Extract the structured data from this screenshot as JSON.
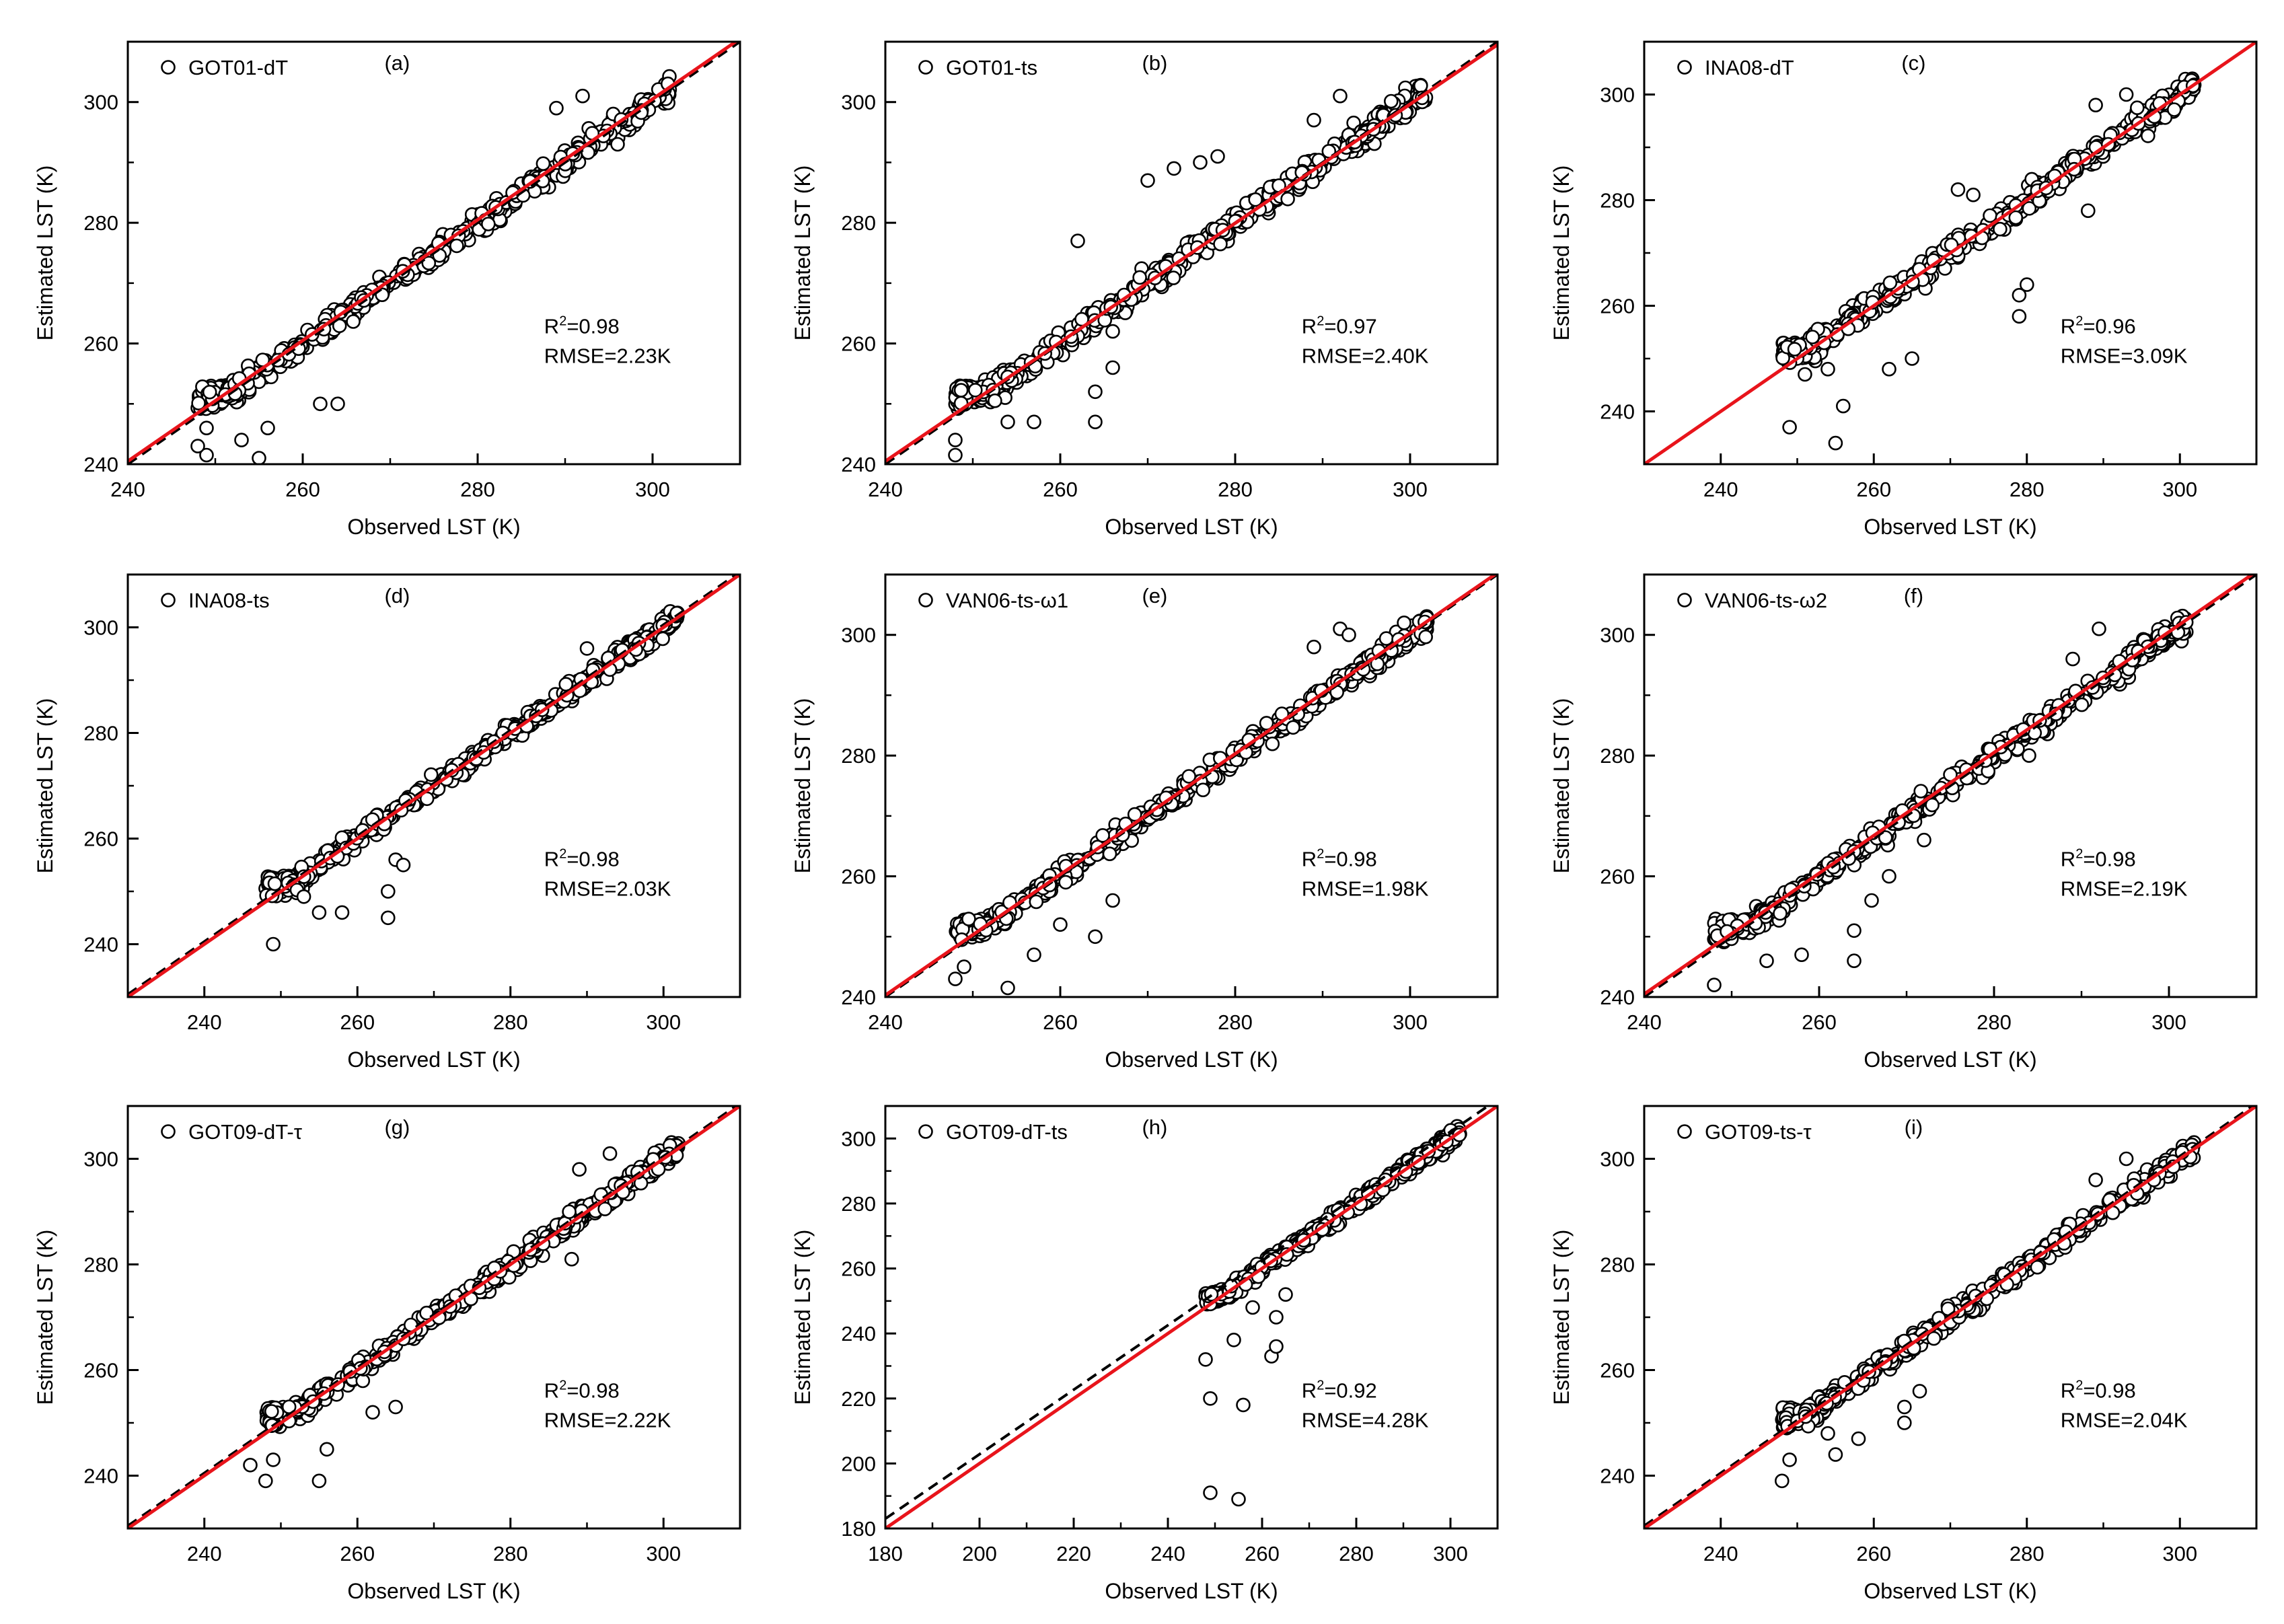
{
  "colors": {
    "fit_line": "#e8141b",
    "one_to_one": "#000000",
    "marker_edge": "#000000",
    "marker_fill": "#ffffff"
  },
  "common": {
    "xlabel": "Observed LST (K)",
    "ylabel": "Estimated LST (K)"
  },
  "chart_data": [
    {
      "type": "scatter",
      "panel": "(a)",
      "legend": "GOT01-dT",
      "r2_label": "R",
      "r2_value": "=0.98",
      "rmse": "RMSE=2.23K",
      "xlim": [
        240,
        310
      ],
      "ylim": [
        240,
        310
      ],
      "xticks": [
        240,
        260,
        280,
        300
      ],
      "yticks": [
        240,
        260,
        280,
        300
      ],
      "fit": [
        [
          240,
          240.5
        ],
        [
          310,
          310.5
        ]
      ],
      "one_to_one": [
        [
          240,
          240
        ],
        [
          310,
          310
        ]
      ],
      "outliers": [
        [
          249,
          241.5
        ],
        [
          255,
          241
        ],
        [
          256,
          246
        ],
        [
          249,
          246
        ],
        [
          262,
          250
        ],
        [
          264,
          250
        ],
        [
          253,
          244
        ],
        [
          248,
          243
        ],
        [
          289,
          299
        ],
        [
          292,
          301
        ],
        [
          296,
          293
        ],
        [
          284,
          285
        ]
      ]
    },
    {
      "type": "scatter",
      "panel": "(b)",
      "legend": "GOT01-ts",
      "r2_label": "R",
      "r2_value": "=0.97",
      "rmse": "RMSE=2.40K",
      "xlim": [
        240,
        310
      ],
      "ylim": [
        240,
        310
      ],
      "xticks": [
        240,
        260,
        280,
        300
      ],
      "yticks": [
        240,
        260,
        280,
        300
      ],
      "fit": [
        [
          240,
          240.5
        ],
        [
          310,
          309.5
        ]
      ],
      "one_to_one": [
        [
          240,
          240
        ],
        [
          310,
          310
        ]
      ],
      "outliers": [
        [
          248,
          241.5
        ],
        [
          254,
          247
        ],
        [
          257,
          247
        ],
        [
          264,
          247
        ],
        [
          264,
          252
        ],
        [
          266,
          256
        ],
        [
          266,
          262
        ],
        [
          270,
          287
        ],
        [
          273,
          289
        ],
        [
          276,
          290
        ],
        [
          278,
          291
        ],
        [
          262,
          277
        ],
        [
          289,
          297
        ],
        [
          292,
          301
        ],
        [
          248,
          244
        ]
      ]
    },
    {
      "type": "scatter",
      "panel": "(c)",
      "legend": "INA08-dT",
      "r2_label": "R",
      "r2_value": "=0.96",
      "rmse": "RMSE=3.09K",
      "xlim": [
        230,
        310
      ],
      "ylim": [
        230,
        310
      ],
      "xticks": [
        240,
        260,
        280,
        300
      ],
      "yticks": [
        240,
        260,
        280,
        300
      ],
      "fit": [
        [
          230,
          230
        ],
        [
          310,
          310
        ]
      ],
      "one_to_one": [
        [
          230,
          230
        ],
        [
          310,
          310
        ]
      ],
      "outliers": [
        [
          255,
          234
        ],
        [
          249,
          237
        ],
        [
          256,
          241
        ],
        [
          254,
          248
        ],
        [
          262,
          248
        ],
        [
          265,
          250
        ],
        [
          271,
          282
        ],
        [
          273,
          281
        ],
        [
          279,
          262
        ],
        [
          279,
          258
        ],
        [
          280,
          264
        ],
        [
          289,
          298
        ],
        [
          293,
          300
        ],
        [
          288,
          278
        ],
        [
          251,
          247
        ]
      ]
    },
    {
      "type": "scatter",
      "panel": "(d)",
      "legend": "INA08-ts",
      "r2_label": "R",
      "r2_value": "=0.98",
      "rmse": "RMSE=2.03K",
      "xlim": [
        230,
        310
      ],
      "ylim": [
        230,
        310
      ],
      "xticks": [
        240,
        260,
        280,
        300
      ],
      "yticks": [
        240,
        260,
        280,
        300
      ],
      "fit": [
        [
          230,
          230
        ],
        [
          310,
          310
        ]
      ],
      "one_to_one": [
        [
          230,
          230.5
        ],
        [
          310,
          310.5
        ]
      ],
      "outliers": [
        [
          249,
          240
        ],
        [
          264,
          245
        ],
        [
          258,
          246
        ],
        [
          255,
          246
        ],
        [
          264,
          250
        ],
        [
          265,
          256
        ],
        [
          266,
          255
        ],
        [
          290,
          296
        ],
        [
          293,
          292
        ],
        [
          253,
          249
        ]
      ]
    },
    {
      "type": "scatter",
      "panel": "(e)",
      "legend": "VAN06-ts-ω1",
      "r2_label": "R",
      "r2_value": "=0.98",
      "rmse": "RMSE=1.98K",
      "xlim": [
        240,
        310
      ],
      "ylim": [
        240,
        310
      ],
      "xticks": [
        240,
        260,
        280,
        300
      ],
      "yticks": [
        240,
        260,
        280,
        300
      ],
      "fit": [
        [
          240,
          240.3
        ],
        [
          310,
          310.3
        ]
      ],
      "one_to_one": [
        [
          240,
          240
        ],
        [
          310,
          310
        ]
      ],
      "outliers": [
        [
          248,
          243
        ],
        [
          254,
          241.5
        ],
        [
          249,
          245
        ],
        [
          257,
          247
        ],
        [
          260,
          252
        ],
        [
          264,
          250
        ],
        [
          266,
          256
        ],
        [
          289,
          298
        ],
        [
          292,
          301
        ],
        [
          293,
          300
        ]
      ]
    },
    {
      "type": "scatter",
      "panel": "(f)",
      "legend": "VAN06-ts-ω2",
      "r2_label": "R",
      "r2_value": "=0.98",
      "rmse": "RMSE=2.19K",
      "xlim": [
        240,
        310
      ],
      "ylim": [
        240,
        310
      ],
      "xticks": [
        240,
        260,
        280,
        300
      ],
      "yticks": [
        240,
        260,
        280,
        300
      ],
      "fit": [
        [
          240,
          240.5
        ],
        [
          310,
          310.5
        ]
      ],
      "one_to_one": [
        [
          240,
          240
        ],
        [
          310,
          310
        ]
      ],
      "outliers": [
        [
          248,
          242
        ],
        [
          254,
          246
        ],
        [
          258,
          247
        ],
        [
          264,
          246
        ],
        [
          264,
          251
        ],
        [
          266,
          256
        ],
        [
          268,
          260
        ],
        [
          289,
          296
        ],
        [
          292,
          301
        ],
        [
          272,
          266
        ],
        [
          284,
          280
        ]
      ]
    },
    {
      "type": "scatter",
      "panel": "(g)",
      "legend": "GOT09-dT-τ",
      "r2_label": "R",
      "r2_value": "=0.98",
      "rmse": "RMSE=2.22K",
      "xlim": [
        230,
        310
      ],
      "ylim": [
        230,
        310
      ],
      "xticks": [
        240,
        260,
        280,
        300
      ],
      "yticks": [
        240,
        260,
        280,
        300
      ],
      "fit": [
        [
          230,
          230
        ],
        [
          310,
          310
        ]
      ],
      "one_to_one": [
        [
          230,
          230.5
        ],
        [
          310,
          310.5
        ]
      ],
      "outliers": [
        [
          248,
          239
        ],
        [
          255,
          239
        ],
        [
          256,
          245
        ],
        [
          246,
          242
        ],
        [
          249,
          243
        ],
        [
          262,
          252
        ],
        [
          265,
          253
        ],
        [
          289,
          298
        ],
        [
          293,
          301
        ],
        [
          288,
          281
        ]
      ]
    },
    {
      "type": "scatter",
      "panel": "(h)",
      "legend": "GOT09-dT-ts",
      "r2_label": "R",
      "r2_value": "=0.92",
      "rmse": "RMSE=4.28K",
      "xlim": [
        180,
        310
      ],
      "ylim": [
        180,
        310
      ],
      "xticks": [
        180,
        200,
        220,
        240,
        260,
        280,
        300
      ],
      "yticks": [
        180,
        200,
        220,
        240,
        260,
        280,
        300
      ],
      "fit": [
        [
          180,
          180
        ],
        [
          310,
          310
        ]
      ],
      "one_to_one": [
        [
          180,
          183
        ],
        [
          310,
          312
        ]
      ],
      "outliers": [
        [
          249,
          191
        ],
        [
          255,
          189
        ],
        [
          249,
          220
        ],
        [
          256,
          218
        ],
        [
          248,
          232
        ],
        [
          254,
          238
        ],
        [
          262,
          233
        ],
        [
          263,
          236
        ],
        [
          263,
          245
        ],
        [
          265,
          252
        ],
        [
          258,
          248
        ]
      ]
    },
    {
      "type": "scatter",
      "panel": "(i)",
      "legend": "GOT09-ts-τ",
      "r2_label": "R",
      "r2_value": "=0.98",
      "rmse": "RMSE=2.04K",
      "xlim": [
        230,
        310
      ],
      "ylim": [
        230,
        310
      ],
      "xticks": [
        240,
        260,
        280,
        300
      ],
      "yticks": [
        240,
        260,
        280,
        300
      ],
      "fit": [
        [
          230,
          230
        ],
        [
          310,
          310
        ]
      ],
      "one_to_one": [
        [
          230,
          230.5
        ],
        [
          310,
          310.5
        ]
      ],
      "outliers": [
        [
          248,
          239
        ],
        [
          255,
          244
        ],
        [
          249,
          243
        ],
        [
          258,
          247
        ],
        [
          264,
          250
        ],
        [
          264,
          253
        ],
        [
          266,
          256
        ],
        [
          293,
          300
        ],
        [
          289,
          296
        ],
        [
          254,
          248
        ]
      ]
    }
  ]
}
